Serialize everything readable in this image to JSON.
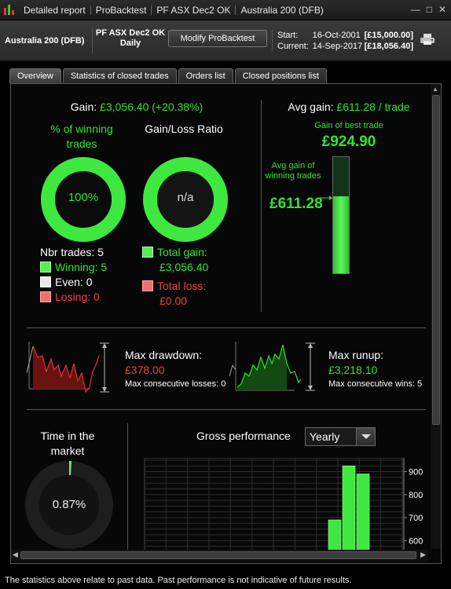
{
  "window": {
    "title_segments": [
      "Detailed report",
      "ProBacktest",
      "PF ASX Dec2 OK",
      "Australia 200 (DFB)"
    ],
    "controls": [
      "—",
      "□",
      "✕"
    ]
  },
  "header": {
    "instrument": "Australia 200 (DFB)",
    "system_name": "PF ASX Dec2 OK",
    "timeframe": "Daily",
    "modify_button": "Modify ProBacktest",
    "start_label": "Start:",
    "start_date": "16-Oct-2001",
    "start_value": "[£15,000.00]",
    "current_label": "Current:",
    "current_date": "14-Sep-2017",
    "current_value": "[£18,056.40]"
  },
  "tabs": [
    "Overview",
    "Statistics of closed trades",
    "Orders list",
    "Closed positions list"
  ],
  "overview": {
    "gain_label": "Gain:",
    "gain_value": "£3,056.40 (+20.38%)",
    "pct_winning_label": "% of winning trades",
    "pct_winning_value": "100%",
    "pct_winning_fraction": 1.0,
    "ratio_label": "Gain/Loss Ratio",
    "ratio_value": "n/a",
    "nbr_trades": "Nbr trades: 5",
    "winning": "Winning: 5",
    "even": "Even: 0",
    "losing": "Losing: 0",
    "total_gain_label": "Total gain:",
    "total_gain_value": "£3,056.40",
    "total_loss_label": "Total loss:",
    "total_loss_value": "£0.00",
    "avg_gain_label": "Avg gain:",
    "avg_gain_value": "£611.28 / trade",
    "best_trade_label": "Gain of best trade",
    "best_trade_value": "£924.90",
    "avg_winning_label": "Avg gain of winning trades",
    "avg_winning_value": "£611.28",
    "avg_fill_fraction": 0.66,
    "max_drawdown_label": "Max drawdown:",
    "max_drawdown_value": "£378.00",
    "max_consec_losses": "Max consecutive losses: 0",
    "max_runup_label": "Max runup:",
    "max_runup_value": "£3,218.10",
    "max_consec_wins": "Max consecutive wins: 5",
    "time_in_market_label": "Time in the market",
    "time_in_market_value": "0.87%",
    "time_in_market_fraction": 0.0087,
    "gross_perf_label": "Gross performance",
    "period_select": "Yearly"
  },
  "chart_data": {
    "type": "bar",
    "title": "Gross performance",
    "y_ticks": [
      900,
      800,
      700,
      600
    ],
    "ylim": [
      550,
      960
    ],
    "values": [
      690,
      925,
      890
    ],
    "grid": true
  },
  "footer": "The statistics above relate to past data. Past performance is not indicative of future results.",
  "colors": {
    "green": "#33e233",
    "red": "#ee4040",
    "panel": "#070707"
  }
}
